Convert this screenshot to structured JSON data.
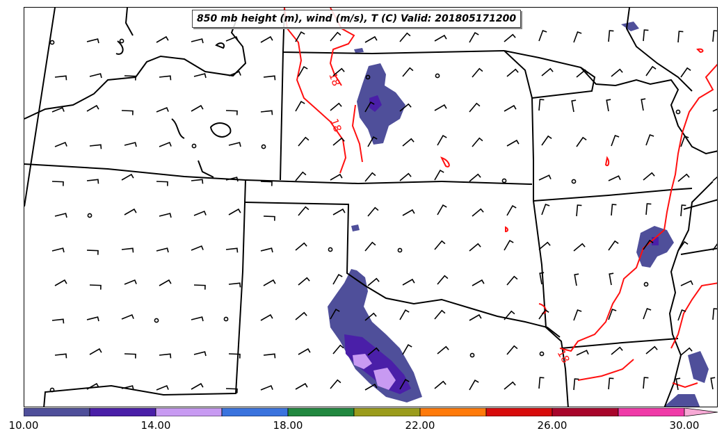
{
  "title": "850 mb height (m), wind (m/s), T (C) Valid: 201805171200",
  "contour_labels": [
    "18",
    "18",
    "18"
  ],
  "colorbar": {
    "colors": [
      "#4f4f9a",
      "#4a1fa8",
      "#c89af2",
      "#3a73de",
      "#21883f",
      "#9b9c1c",
      "#ff7a0a",
      "#d70b0b",
      "#a8052b",
      "#f03aa8",
      "#f7a9d5"
    ],
    "tick_labels": [
      "10.00",
      "14.00",
      "18.00",
      "22.00",
      "26.00",
      "30.00"
    ]
  }
}
